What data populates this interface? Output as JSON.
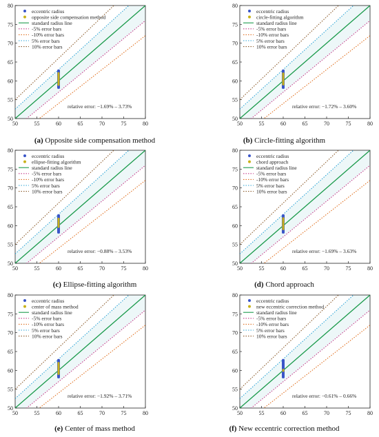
{
  "legend_labels": {
    "scatter": "eccentric radius",
    "standard": "standard radius line",
    "minus5": "-5% error bars",
    "minus10": "-10% error bars",
    "plus5": "5% error bars",
    "plus10": "10% error bars"
  },
  "colors": {
    "standard": "#1a9a4a",
    "minus5": "#c43a8a",
    "minus10": "#e07020",
    "plus5": "#2ba3d6",
    "plus10": "#8a5a2a",
    "scatter_blue": "#3a55c8",
    "scatter_yellow": "#c9b21a",
    "band": "#d8eef0"
  },
  "chart_data": [
    {
      "type": "scatter",
      "panel": "a",
      "caption_letter": "(a)",
      "caption_text": "Opposite side compensation method",
      "method_label": "opposite side compensation method",
      "relative_error": "relative error: −1.69% – 3.73%",
      "xlim": [
        50,
        80
      ],
      "ylim": [
        50,
        80
      ],
      "ticks": [
        50,
        55,
        60,
        65,
        70,
        75,
        80
      ],
      "series": [
        {
          "name": "eccentric radius",
          "x": 60,
          "y_range": [
            57.9,
            63.0
          ]
        },
        {
          "name": "opposite side compensation method",
          "x": 60,
          "y_range": [
            58.7,
            62.3
          ]
        }
      ]
    },
    {
      "type": "scatter",
      "panel": "b",
      "caption_letter": "(b)",
      "caption_text": "Circle-fitting algorithm",
      "method_label": "circle-fitting algorithm",
      "relative_error": "relative error: −1.72% – 3.60%",
      "xlim": [
        50,
        80
      ],
      "ylim": [
        50,
        80
      ],
      "ticks": [
        50,
        55,
        60,
        65,
        70,
        75,
        80
      ],
      "series": [
        {
          "name": "eccentric radius",
          "x": 60,
          "y_range": [
            57.9,
            63.0
          ]
        },
        {
          "name": "circle-fitting algorithm",
          "x": 60,
          "y_range": [
            58.8,
            62.2
          ]
        }
      ]
    },
    {
      "type": "scatter",
      "panel": "c",
      "caption_letter": "(c)",
      "caption_text": "Ellipse-fitting algorithm",
      "method_label": "ellipse-fitting algorithm",
      "relative_error": "relative error: −0.88% – 3.53%",
      "xlim": [
        50,
        80
      ],
      "ylim": [
        50,
        80
      ],
      "ticks": [
        50,
        55,
        60,
        65,
        70,
        75,
        80
      ],
      "series": [
        {
          "name": "eccentric radius",
          "x": 60,
          "y_range": [
            57.9,
            63.0
          ]
        },
        {
          "name": "ellipse-fitting algorithm",
          "x": 60,
          "y_range": [
            59.4,
            62.1
          ]
        }
      ]
    },
    {
      "type": "scatter",
      "panel": "d",
      "caption_letter": "(d)",
      "caption_text": "Chord approach",
      "method_label": "chord approach",
      "relative_error": "relative error: −1.69% – 3.63%",
      "xlim": [
        50,
        80
      ],
      "ylim": [
        50,
        80
      ],
      "ticks": [
        50,
        55,
        60,
        65,
        70,
        75,
        80
      ],
      "series": [
        {
          "name": "eccentric radius",
          "x": 60,
          "y_range": [
            57.9,
            63.0
          ]
        },
        {
          "name": "chord approach",
          "x": 60,
          "y_range": [
            58.8,
            62.2
          ]
        }
      ]
    },
    {
      "type": "scatter",
      "panel": "e",
      "caption_letter": "(e)",
      "caption_text": "Center of mass method",
      "method_label": "center of mass method",
      "relative_error": "relative error: −1.92% – 3.71%",
      "xlim": [
        50,
        80
      ],
      "ylim": [
        50,
        80
      ],
      "ticks": [
        50,
        55,
        60,
        65,
        70,
        75,
        80
      ],
      "series": [
        {
          "name": "eccentric radius",
          "x": 60,
          "y_range": [
            57.9,
            63.0
          ]
        },
        {
          "name": "center of mass method",
          "x": 60,
          "y_range": [
            58.8,
            62.2
          ]
        }
      ]
    },
    {
      "type": "scatter",
      "panel": "f",
      "caption_letter": "(f)",
      "caption_text": "New eccentric correction method",
      "method_label": "new eccentric correction method",
      "relative_error": "relative error: −0.61% – 0.66%",
      "xlim": [
        50,
        80
      ],
      "ylim": [
        50,
        80
      ],
      "ticks": [
        50,
        55,
        60,
        65,
        70,
        75,
        80
      ],
      "series": [
        {
          "name": "eccentric radius",
          "x": 60,
          "y_range": [
            57.9,
            63.0
          ]
        },
        {
          "name": "new eccentric correction method",
          "x": 60,
          "y_range": [
            59.6,
            60.4
          ]
        }
      ]
    }
  ]
}
